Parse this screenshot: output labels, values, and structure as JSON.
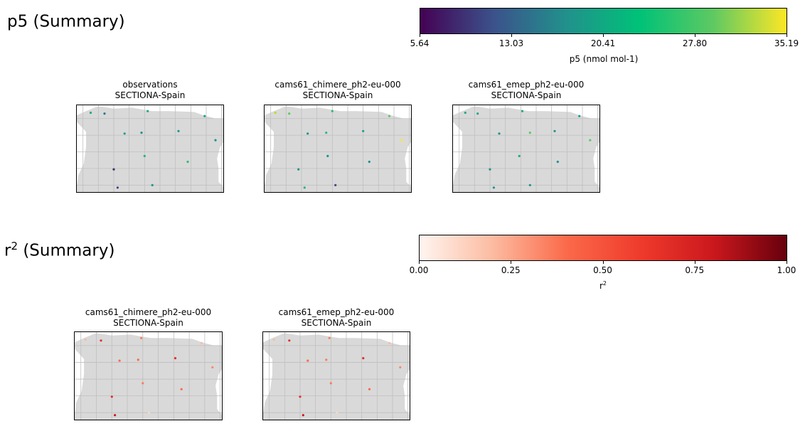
{
  "sections": [
    {
      "title_base": "p5",
      "title_sup": "",
      "title_rest": " (Summary)",
      "colorbar": {
        "colormap": "viridis",
        "stops": [
          "#440154",
          "#3b528b",
          "#21918c",
          "#00c278",
          "#5ec962",
          "#fde725"
        ],
        "ticks": [
          "5.64",
          "13.03",
          "20.41",
          "27.80",
          "35.19"
        ],
        "label_base": "p5  (nmol mol-1)",
        "label_sup": ""
      },
      "maps": [
        {
          "title": "observations",
          "subtitle": "SECTIONA-Spain",
          "points": [
            {
              "lon": -8.5,
              "lat": 43.35,
              "color": "#22a884"
            },
            {
              "lon": -7.6,
              "lat": 43.3,
              "color": "#2a788e"
            },
            {
              "lon": -4.8,
              "lat": 43.45,
              "color": "#22a884"
            },
            {
              "lon": -6.3,
              "lat": 42.1,
              "color": "#1f9e89"
            },
            {
              "lon": -5.2,
              "lat": 42.15,
              "color": "#21918c"
            },
            {
              "lon": -2.8,
              "lat": 42.25,
              "color": "#21918c"
            },
            {
              "lon": -1.1,
              "lat": 43.15,
              "color": "#1f9e89"
            },
            {
              "lon": -0.4,
              "lat": 41.7,
              "color": "#21918c"
            },
            {
              "lon": -5.0,
              "lat": 40.75,
              "color": "#2ab07f"
            },
            {
              "lon": -2.2,
              "lat": 40.4,
              "color": "#35b779"
            },
            {
              "lon": -7.0,
              "lat": 39.95,
              "color": "#3b2f6b"
            },
            {
              "lon": -4.5,
              "lat": 39.0,
              "color": "#21918c"
            },
            {
              "lon": -6.75,
              "lat": 38.85,
              "color": "#404688"
            }
          ]
        },
        {
          "title": "cams61_chimere_ph2-eu-000",
          "subtitle": "SECTIONA-Spain",
          "points": [
            {
              "lon": -8.7,
              "lat": 43.35,
              "color": "#b5de2b"
            },
            {
              "lon": -7.8,
              "lat": 43.3,
              "color": "#5ec962"
            },
            {
              "lon": -5.0,
              "lat": 43.45,
              "color": "#35b779"
            },
            {
              "lon": -6.6,
              "lat": 42.1,
              "color": "#21918c"
            },
            {
              "lon": -5.4,
              "lat": 42.15,
              "color": "#35b779"
            },
            {
              "lon": -3.0,
              "lat": 42.25,
              "color": "#1f9e89"
            },
            {
              "lon": -1.3,
              "lat": 43.15,
              "color": "#5ec962"
            },
            {
              "lon": -0.5,
              "lat": 41.7,
              "color": "#fde725"
            },
            {
              "lon": -5.3,
              "lat": 40.75,
              "color": "#21918c"
            },
            {
              "lon": -2.6,
              "lat": 40.4,
              "color": "#21918c"
            },
            {
              "lon": -7.2,
              "lat": 39.95,
              "color": "#21918c"
            },
            {
              "lon": -6.8,
              "lat": 38.85,
              "color": "#2ab07f"
            },
            {
              "lon": -4.8,
              "lat": 39.0,
              "color": "#414487"
            }
          ]
        },
        {
          "title": "cams61_emep_ph2-eu-000",
          "subtitle": "SECTIONA-Spain",
          "points": [
            {
              "lon": -8.6,
              "lat": 43.35,
              "color": "#22a884"
            },
            {
              "lon": -7.8,
              "lat": 43.3,
              "color": "#22a884"
            },
            {
              "lon": -4.9,
              "lat": 43.45,
              "color": "#22a884"
            },
            {
              "lon": -6.4,
              "lat": 42.1,
              "color": "#21918c"
            },
            {
              "lon": -4.4,
              "lat": 42.15,
              "color": "#5ec962"
            },
            {
              "lon": -2.8,
              "lat": 42.25,
              "color": "#21918c"
            },
            {
              "lon": -1.2,
              "lat": 43.15,
              "color": "#1f9e89"
            },
            {
              "lon": -0.5,
              "lat": 41.7,
              "color": "#5ec962"
            },
            {
              "lon": -5.1,
              "lat": 40.75,
              "color": "#22a884"
            },
            {
              "lon": -2.6,
              "lat": 40.4,
              "color": "#21918c"
            },
            {
              "lon": -7.0,
              "lat": 39.95,
              "color": "#21918c"
            },
            {
              "lon": -6.75,
              "lat": 38.85,
              "color": "#21918c"
            },
            {
              "lon": -4.4,
              "lat": 39.0,
              "color": "#21918c"
            }
          ]
        }
      ]
    },
    {
      "title_base": "r",
      "title_sup": "2",
      "title_rest": " (Summary)",
      "colorbar": {
        "colormap": "Reds",
        "stops": [
          "#fff5f0",
          "#fcbba1",
          "#fb6a4a",
          "#ef3b2c",
          "#cb181d",
          "#67000d"
        ],
        "ticks": [
          "0.00",
          "0.25",
          "0.50",
          "0.75",
          "1.00"
        ],
        "label_base": "r",
        "label_sup": "2"
      },
      "maps": [
        {
          "title": "cams61_chimere_ph2-eu-000",
          "subtitle": "SECTIONA-Spain",
          "points": [
            {
              "lon": -8.7,
              "lat": 43.35,
              "color": "#fcbba1"
            },
            {
              "lon": -7.7,
              "lat": 43.3,
              "color": "#e32f27"
            },
            {
              "lon": -5.1,
              "lat": 43.45,
              "color": "#fb7c5c"
            },
            {
              "lon": -6.5,
              "lat": 42.1,
              "color": "#fb6a4a"
            },
            {
              "lon": -5.3,
              "lat": 42.15,
              "color": "#fb6a4a"
            },
            {
              "lon": -2.9,
              "lat": 42.25,
              "color": "#e32f27"
            },
            {
              "lon": -1.2,
              "lat": 43.15,
              "color": "#fcbba1"
            },
            {
              "lon": -0.5,
              "lat": 41.7,
              "color": "#fb8a6a"
            },
            {
              "lon": -5.0,
              "lat": 40.75,
              "color": "#fb7c5c"
            },
            {
              "lon": -2.5,
              "lat": 40.4,
              "color": "#fb6a4a"
            },
            {
              "lon": -7.0,
              "lat": 39.95,
              "color": "#e32f27"
            },
            {
              "lon": -6.8,
              "lat": 38.85,
              "color": "#cb181d"
            },
            {
              "lon": -4.6,
              "lat": 39.0,
              "color": "#fcd5c5"
            }
          ]
        },
        {
          "title": "cams61_emep_ph2-eu-000",
          "subtitle": "SECTIONA-Spain",
          "points": [
            {
              "lon": -8.7,
              "lat": 43.35,
              "color": "#fcbba1"
            },
            {
              "lon": -7.7,
              "lat": 43.3,
              "color": "#e32f27"
            },
            {
              "lon": -5.1,
              "lat": 43.45,
              "color": "#fb7c5c"
            },
            {
              "lon": -6.5,
              "lat": 42.1,
              "color": "#fb6a4a"
            },
            {
              "lon": -5.3,
              "lat": 42.15,
              "color": "#fb7c5c"
            },
            {
              "lon": -2.9,
              "lat": 42.25,
              "color": "#e32f27"
            },
            {
              "lon": -1.2,
              "lat": 43.15,
              "color": "#fcbba1"
            },
            {
              "lon": -0.5,
              "lat": 41.7,
              "color": "#fb8a6a"
            },
            {
              "lon": -5.0,
              "lat": 40.75,
              "color": "#fb7c5c"
            },
            {
              "lon": -2.5,
              "lat": 40.4,
              "color": "#fb6a4a"
            },
            {
              "lon": -7.0,
              "lat": 39.95,
              "color": "#e32f27"
            },
            {
              "lon": -6.8,
              "lat": 38.85,
              "color": "#cb181d"
            },
            {
              "lon": -4.6,
              "lat": 39.0,
              "color": "#fcd5c5"
            }
          ]
        }
      ]
    }
  ],
  "map_extent": {
    "lon_min": -9.4,
    "lon_max": 0.2,
    "lat_min": 38.5,
    "lat_max": 43.8
  },
  "map_colors": {
    "land": "#d9d9d9",
    "grid": "#bfbfbf",
    "sea": "#ffffff"
  },
  "chart_data": [
    {
      "type": "scatter",
      "title": "observations",
      "subtitle": "SECTIONA-Spain",
      "colorbar_range": [
        5.64,
        35.19
      ],
      "colorbar_label": "p5  (nmol mol-1)"
    },
    {
      "type": "scatter",
      "title": "cams61_chimere_ph2-eu-000",
      "subtitle": "SECTIONA-Spain",
      "colorbar_range": [
        5.64,
        35.19
      ]
    },
    {
      "type": "scatter",
      "title": "cams61_emep_ph2-eu-000",
      "subtitle": "SECTIONA-Spain",
      "colorbar_range": [
        5.64,
        35.19
      ]
    },
    {
      "type": "scatter",
      "title": "cams61_chimere_ph2-eu-000",
      "subtitle": "SECTIONA-Spain",
      "colorbar_range": [
        0,
        1
      ]
    },
    {
      "type": "scatter",
      "title": "cams61_emep_ph2-eu-000",
      "subtitle": "SECTIONA-Spain",
      "colorbar_range": [
        0,
        1
      ]
    }
  ]
}
